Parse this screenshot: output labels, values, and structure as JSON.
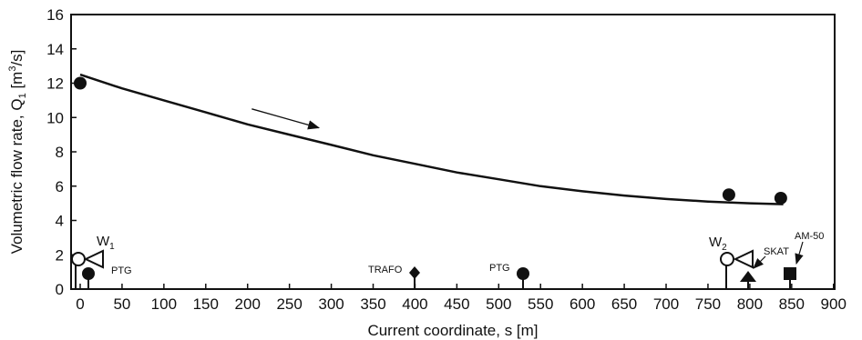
{
  "chart_data": {
    "type": "line",
    "xlabel": "Current coordinate, s [m]",
    "ylabel": "Volumetric flow rate, Q",
    "ylabel_sub": "1",
    "ylabel_unit_pre": " [m",
    "ylabel_unit_sup": "3",
    "ylabel_unit_post": "/s]",
    "xlim": [
      0,
      900
    ],
    "ylim": [
      0,
      16
    ],
    "xticks": [
      0,
      50,
      100,
      150,
      200,
      250,
      300,
      350,
      400,
      450,
      500,
      550,
      600,
      650,
      700,
      750,
      800,
      850,
      900
    ],
    "yticks": [
      0,
      2,
      4,
      6,
      8,
      10,
      12,
      14,
      16
    ],
    "series": [
      {
        "x": [
          0,
          50,
          100,
          150,
          200,
          250,
          300,
          350,
          400,
          450,
          500,
          550,
          600,
          650,
          700,
          750,
          800,
          840
        ],
        "y": [
          12.5,
          11.7,
          11.0,
          10.3,
          9.6,
          9.0,
          8.4,
          7.8,
          7.3,
          6.8,
          6.4,
          6.0,
          5.7,
          5.45,
          5.25,
          5.1,
          5.0,
          4.95
        ]
      }
    ],
    "points": [
      {
        "x": 0,
        "y": 12.0
      },
      {
        "x": 775,
        "y": 5.5
      },
      {
        "x": 837,
        "y": 5.3
      }
    ],
    "annotations": {
      "flow_arrow": {
        "from": [
          205,
          10.5
        ],
        "to": [
          285,
          9.4
        ]
      },
      "w1": {
        "main": "W",
        "sub": "1"
      },
      "w2": {
        "main": "W",
        "sub": "2"
      },
      "ptg_left": "PTG",
      "trafo": "TRAFO",
      "ptg_mid": "PTG",
      "skat": "SKAT",
      "am50": "AM-50"
    }
  }
}
